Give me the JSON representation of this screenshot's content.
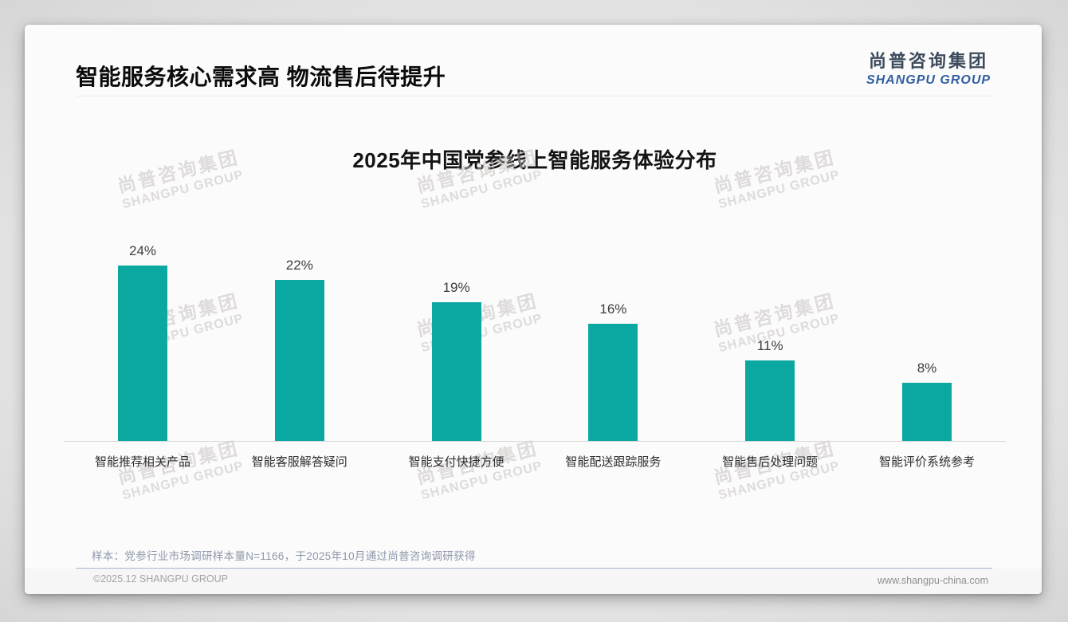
{
  "header": {
    "title": "智能服务核心需求高 物流售后待提升"
  },
  "logo": {
    "cn": "尚普咨询集团",
    "en": "SHANGPU GROUP"
  },
  "watermark": {
    "cn": "尚普咨询集团",
    "en": "SHANGPU GROUP"
  },
  "chart_data": {
    "type": "bar",
    "title": "2025年中国党参线上智能服务体验分布",
    "categories": [
      "智能推荐相关产品",
      "智能客服解答疑问",
      "智能支付快捷方便",
      "智能配送跟踪服务",
      "智能售后处理问题",
      "智能评价系统参考"
    ],
    "values": [
      24,
      22,
      19,
      16,
      11,
      8
    ],
    "value_labels": [
      "24%",
      "22%",
      "19%",
      "16%",
      "11%",
      "8%"
    ],
    "unit": "%",
    "ylim": [
      0,
      26
    ],
    "grid": false,
    "legend": "none",
    "data_label_position": "above-bar",
    "bar_color": "#0BA8A1"
  },
  "footnote": "样本：党参行业市场调研样本量N=1166，于2025年10月通过尚普咨询调研获得",
  "footer": {
    "copyright": "©2025.12 SHANGPU GROUP",
    "website": "www.shangpu-china.com"
  },
  "colors": {
    "bar": "#0BA8A1",
    "logo_cn": "#3C4B5C",
    "logo_en": "#2F5E9F",
    "note_text": "#8F98AB",
    "axis_line": "#D9D9D9",
    "footer_divider": "#AAB8C9"
  }
}
